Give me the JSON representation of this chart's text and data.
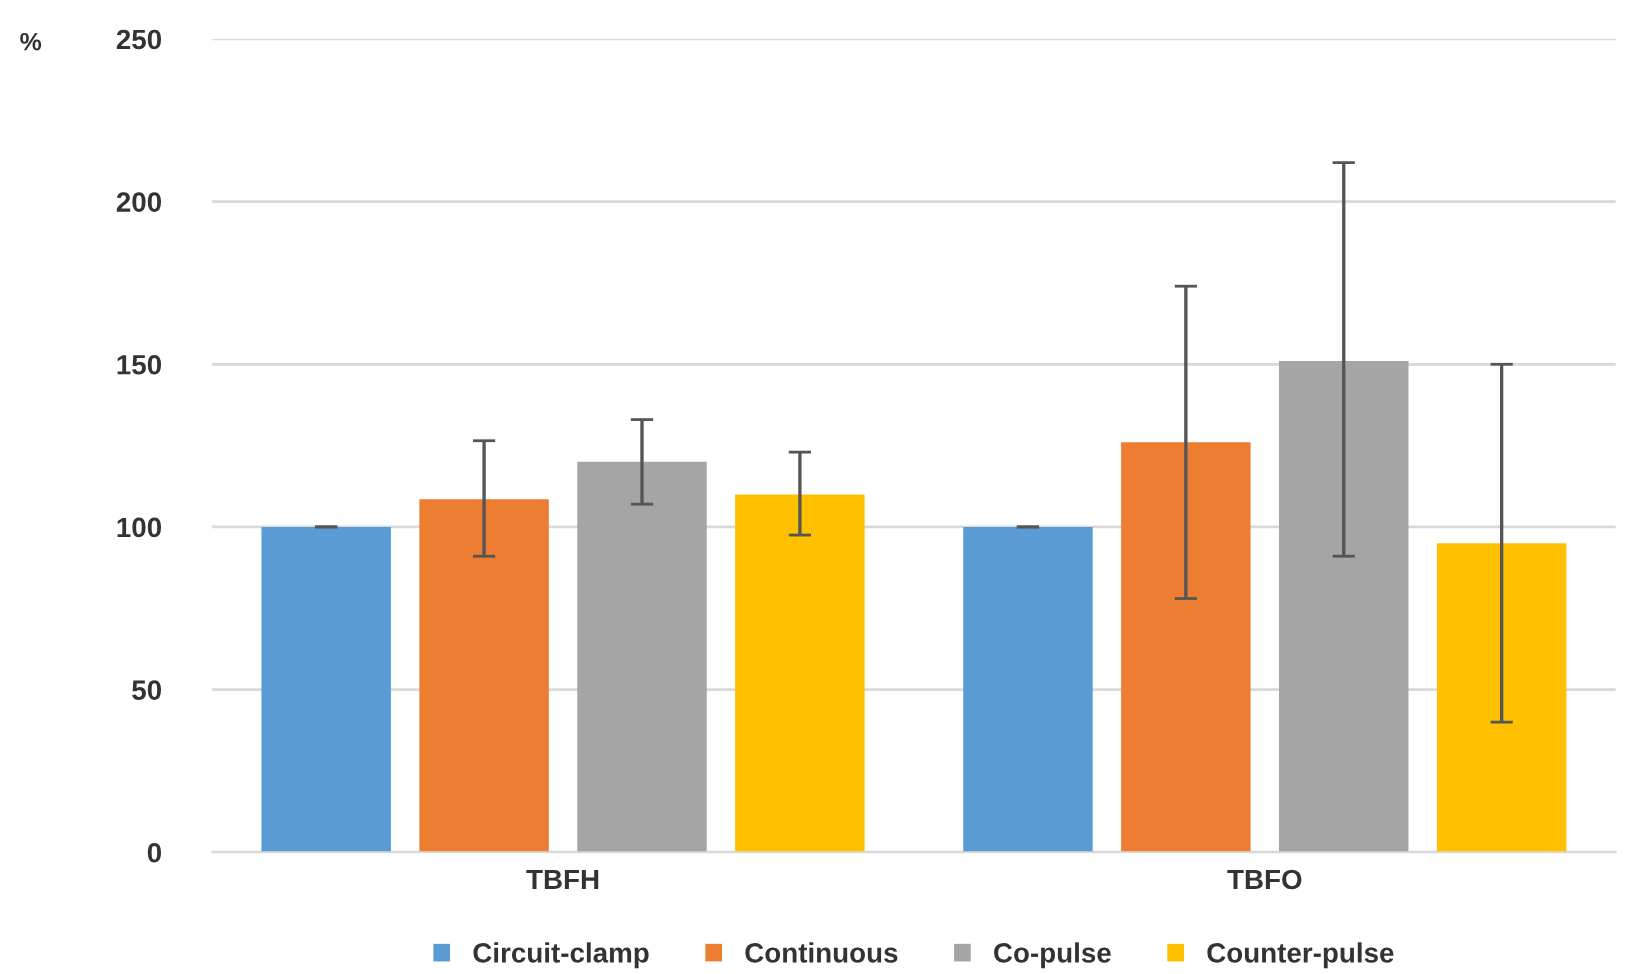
{
  "chart_data": {
    "type": "bar",
    "ylabel": "%",
    "categories": [
      "TBFH",
      "TBFO"
    ],
    "series": [
      {
        "name": "Circuit-clamp",
        "color": "#5b9bd5",
        "values": [
          100,
          100
        ],
        "errors": [
          [
            100,
            100
          ],
          [
            100,
            100
          ]
        ]
      },
      {
        "name": "Continuous",
        "color": "#ed7d31",
        "values": [
          108.5,
          126
        ],
        "errors": [
          [
            91,
            126.5
          ],
          [
            78,
            174
          ]
        ]
      },
      {
        "name": "Co-pulse",
        "color": "#a5a5a5",
        "values": [
          120,
          151
        ],
        "errors": [
          [
            107,
            133
          ],
          [
            91,
            212
          ]
        ]
      },
      {
        "name": "Counter-pulse",
        "color": "#ffc000",
        "values": [
          110,
          95
        ],
        "errors": [
          [
            97.5,
            123
          ],
          [
            40,
            150
          ]
        ]
      }
    ],
    "ylim": [
      0,
      250
    ],
    "yticks": [
      0,
      50,
      100,
      150,
      200,
      250
    ],
    "grid": "y",
    "legend": "bottom"
  }
}
